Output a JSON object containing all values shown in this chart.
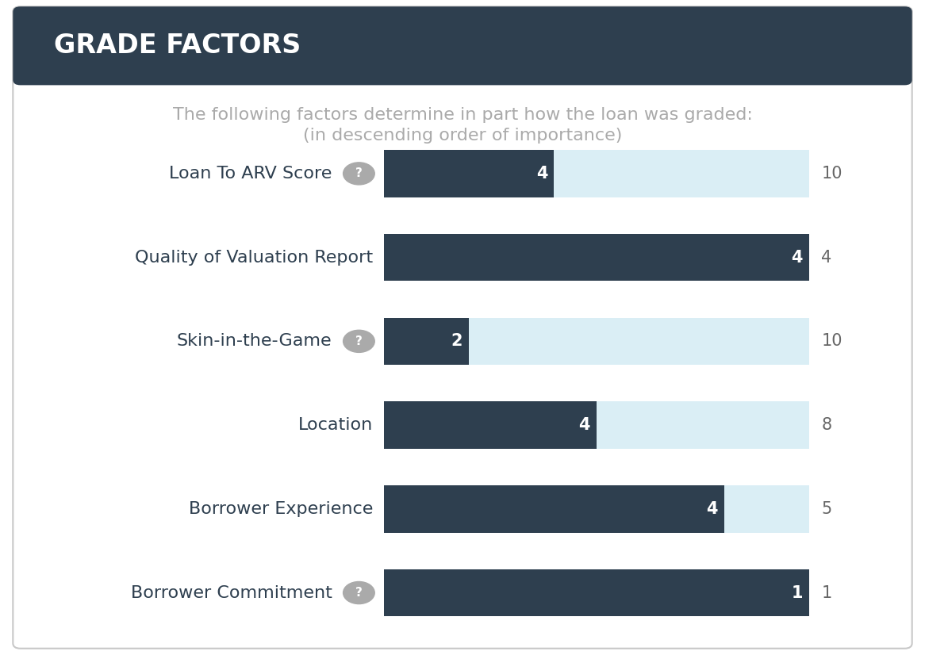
{
  "title": "GRADE FACTORS",
  "subtitle_line1": "The following factors determine in part how the loan was graded:",
  "subtitle_line2": "(in descending order of importance)",
  "header_bg": "#2e3f4f",
  "card_bg": "#ffffff",
  "card_border": "#c8c8c8",
  "bar_dark": "#2e3f4f",
  "bar_light": "#daeef5",
  "categories": [
    "Loan To ARV Score",
    "Quality of Valuation Report",
    "Skin-in-the-Game",
    "Location",
    "Borrower Experience",
    "Borrower Commitment"
  ],
  "has_question_mark": [
    true,
    false,
    true,
    false,
    false,
    true
  ],
  "scores": [
    4,
    4,
    2,
    4,
    4,
    1
  ],
  "max_scores": [
    10,
    4,
    10,
    8,
    5,
    1
  ],
  "subtitle_color": "#aaaaaa",
  "label_color": "#2e3f4f",
  "score_text_color": "#ffffff",
  "max_score_color": "#666666",
  "title_color": "#ffffff",
  "title_fontsize": 24,
  "subtitle_fontsize": 16,
  "label_fontsize": 16,
  "bar_score_fontsize": 15,
  "max_score_fontsize": 15,
  "qm_color": "#aaaaaa",
  "qm_fontsize": 11
}
